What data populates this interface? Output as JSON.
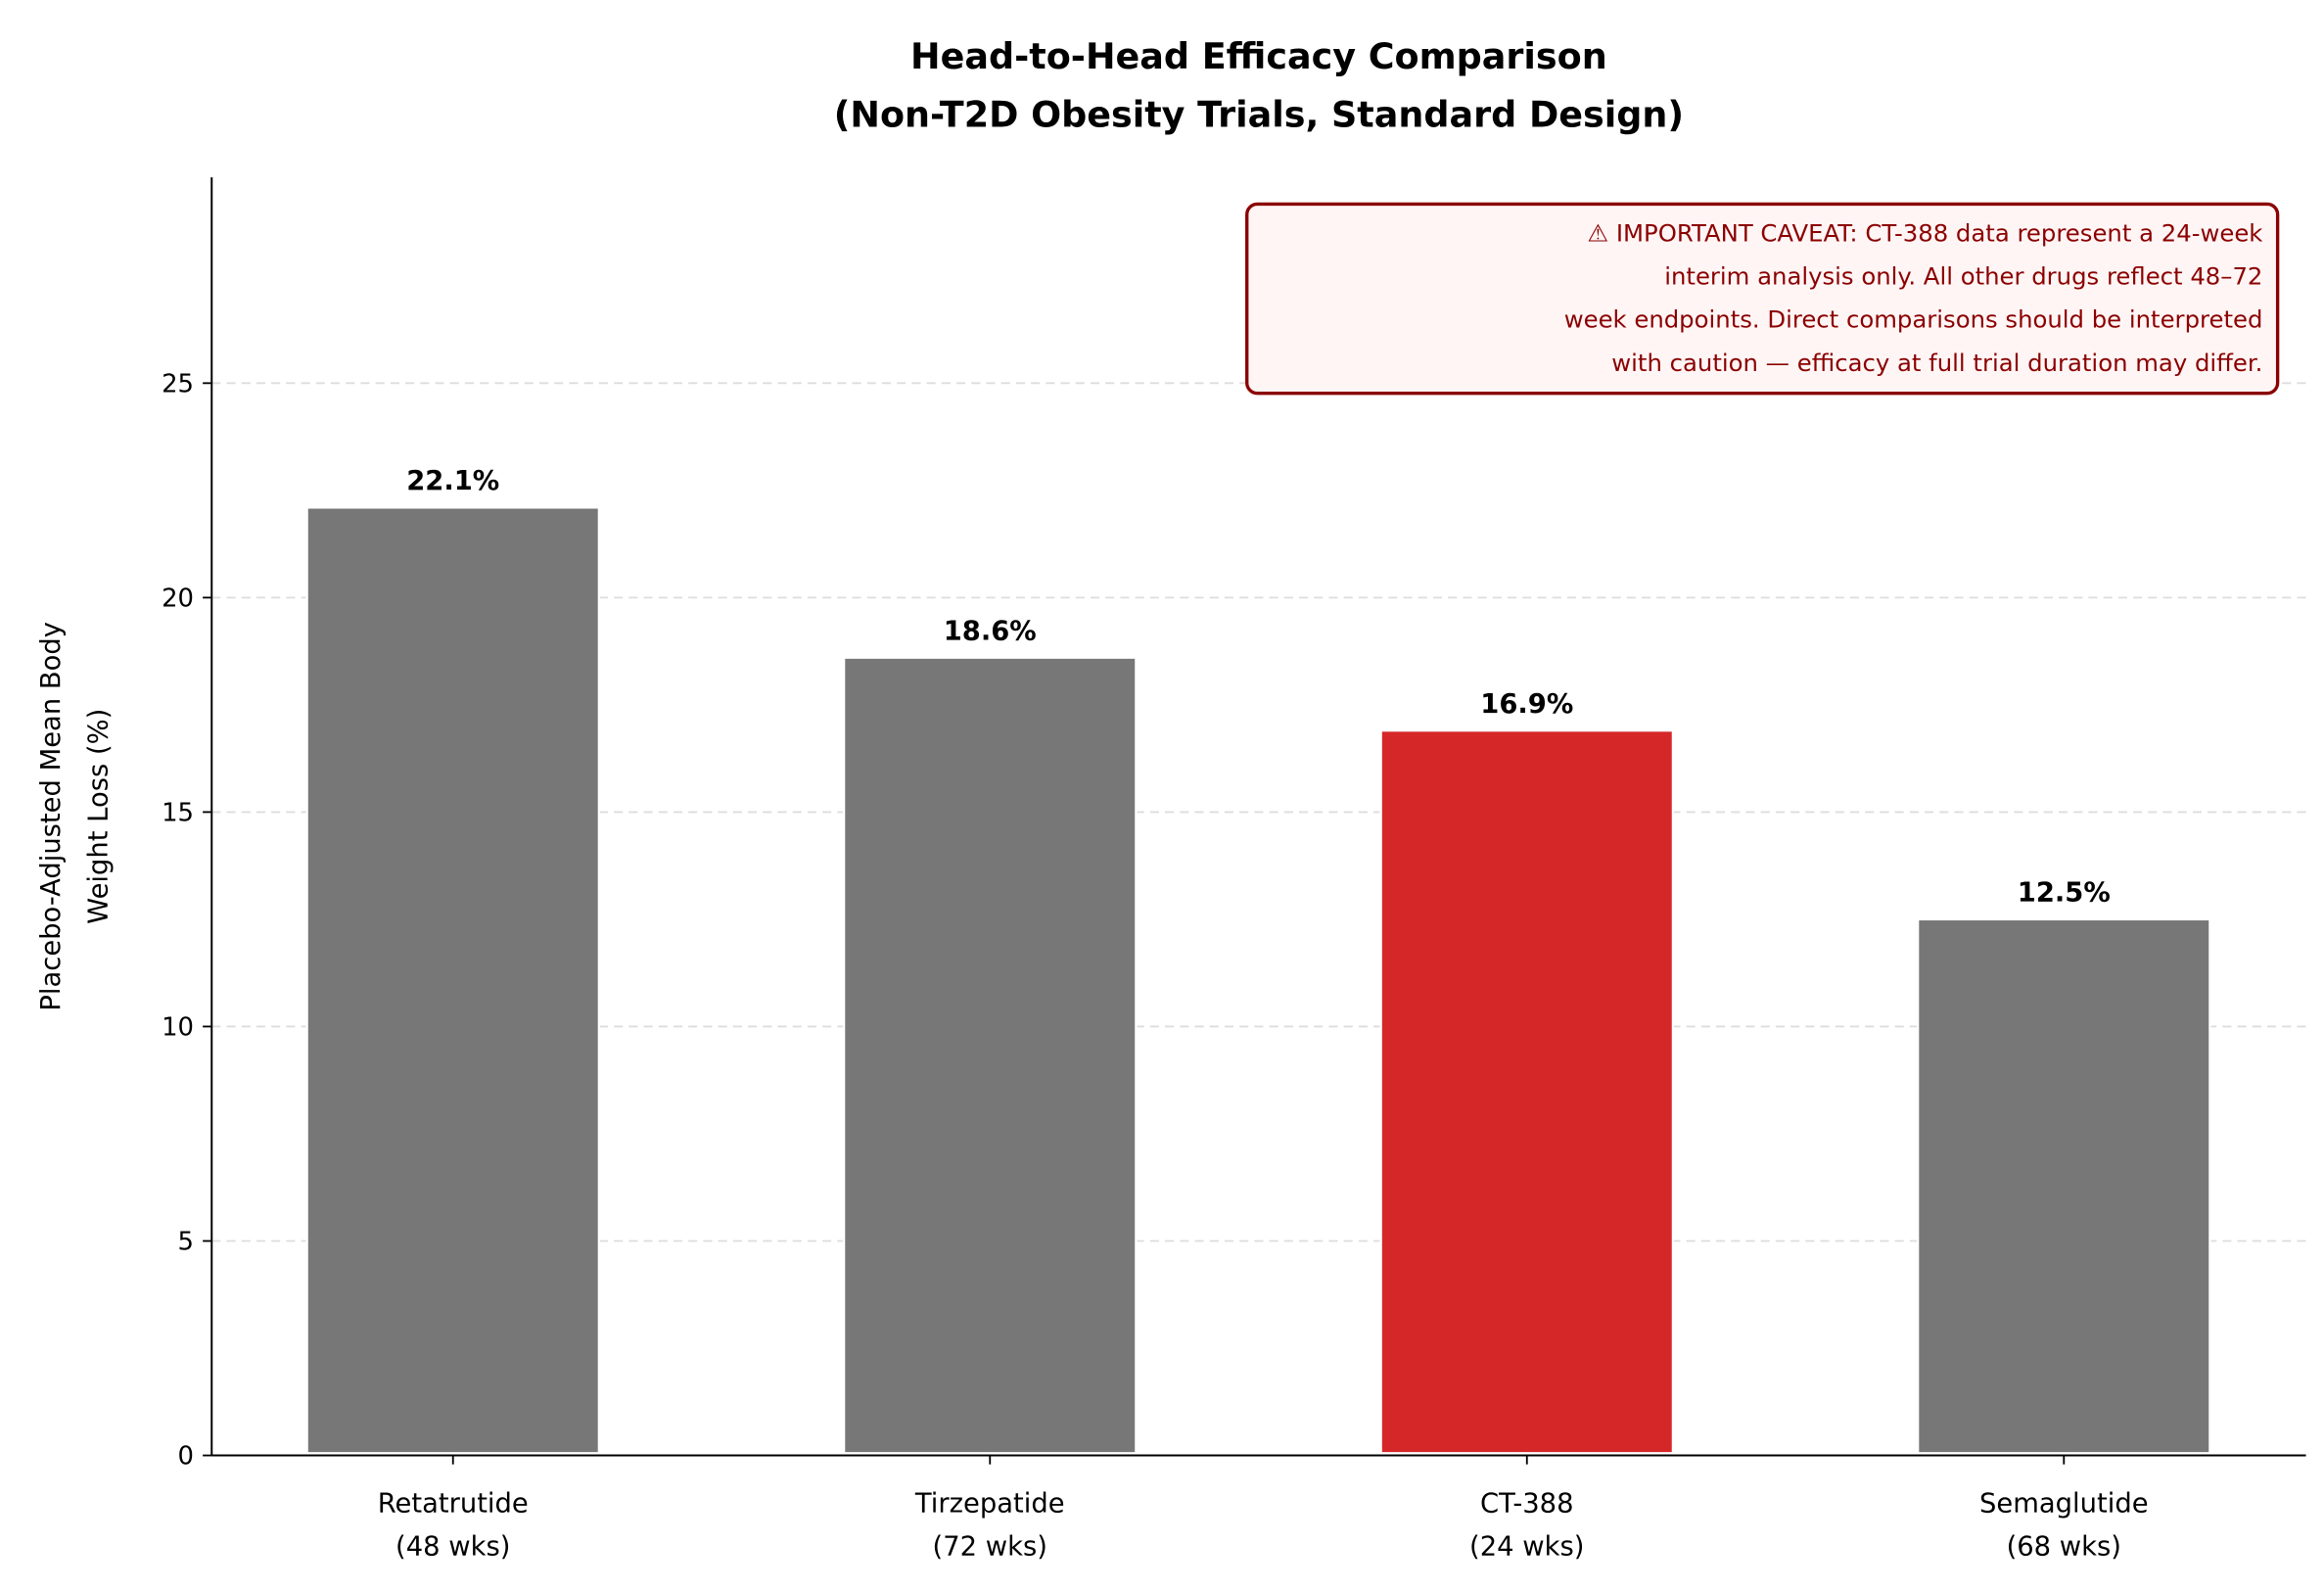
{
  "chart_data": {
    "type": "bar",
    "title_lines": [
      "Head-to-Head Efficacy Comparison",
      "(Non-T2D Obesity Trials, Standard Design)"
    ],
    "ylabel_lines": [
      "Placebo-Adjusted Mean Body",
      "Weight Loss (%)"
    ],
    "xlabel": "",
    "categories": [
      [
        "Retatrutide",
        "(48 wks)"
      ],
      [
        "Tirzepatide",
        "(72 wks)"
      ],
      [
        "CT-388",
        "(24 wks)"
      ],
      [
        "Semaglutide",
        "(68 wks)"
      ]
    ],
    "values": [
      22.1,
      18.6,
      16.9,
      12.5
    ],
    "value_labels": [
      "22.1%",
      "18.6%",
      "16.9%",
      "12.5%"
    ],
    "bar_colors": [
      "#777777",
      "#777777",
      "#d62728",
      "#777777"
    ],
    "ylim": [
      0,
      29.8
    ],
    "yticks": [
      0,
      5,
      10,
      15,
      20,
      25
    ],
    "grid": "y dashed",
    "annotation": {
      "lines": [
        "⚠  IMPORTANT CAVEAT: CT-388 data represent a 24-week",
        "interim analysis only. All other drugs reflect 48–72",
        "week endpoints. Direct comparisons should be interpreted",
        "with caution — efficacy at full trial duration may differ."
      ],
      "text_color": "#8b0000",
      "border_color": "#8b0000",
      "background": "#fff5f5",
      "placement": "top-right"
    }
  }
}
